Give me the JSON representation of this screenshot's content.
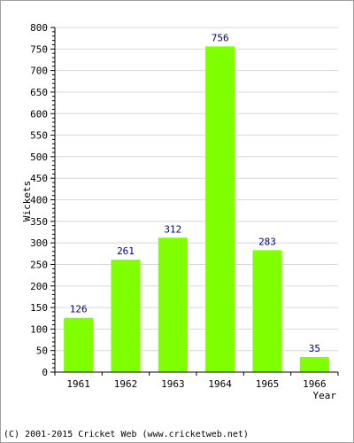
{
  "chart_data": {
    "type": "bar",
    "categories": [
      "1961",
      "1962",
      "1963",
      "1964",
      "1965",
      "1966"
    ],
    "values": [
      126,
      261,
      312,
      756,
      283,
      35
    ],
    "ylabel": "Wickets",
    "xlabel": "Year",
    "ylim": [
      0,
      800
    ],
    "ytick_step": 50,
    "grid": true,
    "bar_color": "#80ff00",
    "value_label_color": "#000080"
  },
  "footer": "(C) 2001-2015 Cricket Web (www.cricketweb.net)"
}
